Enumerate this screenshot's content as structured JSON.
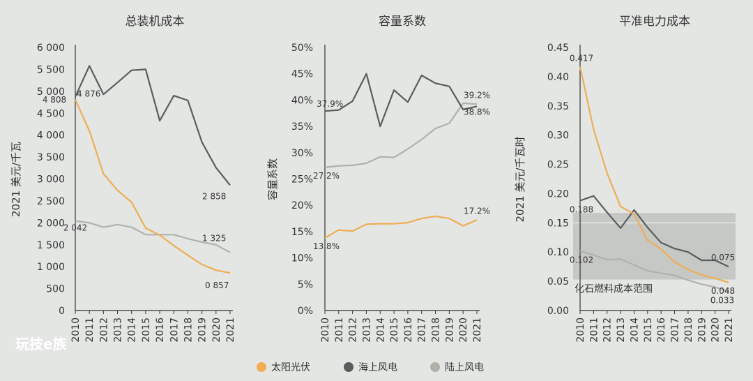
{
  "colors": {
    "solar": "#f0ad55",
    "offshore": "#5b5d5d",
    "onshore": "#b0b2aa",
    "band": "#c6c8c5",
    "axis": "#333333",
    "background": "#e3e6e3"
  },
  "watermark": "玩技e族",
  "legend": [
    {
      "key": "solar",
      "label": "太阳光伏"
    },
    {
      "key": "offshore",
      "label": "海上风电"
    },
    {
      "key": "onshore",
      "label": "陆上风电"
    }
  ],
  "chart_data": [
    {
      "type": "line",
      "title": "总装机成本",
      "xlabel": "",
      "ylabel": "2021 美元/千瓦",
      "x": [
        "2010",
        "2011",
        "2012",
        "2013",
        "2014",
        "2015",
        "2016",
        "2017",
        "2018",
        "2019",
        "2020",
        "2021"
      ],
      "ylim": [
        0,
        6000
      ],
      "yticks": [
        "0",
        "500",
        "1 000",
        "1 500",
        "2 000",
        "2 500",
        "3 000",
        "3 500",
        "4 000",
        "4 500",
        "5 000",
        "5 500",
        "6 000"
      ],
      "series": [
        {
          "name": "太阳光伏",
          "key": "solar",
          "values": [
            4808,
            4100,
            3120,
            2740,
            2470,
            1880,
            1720,
            1480,
            1260,
            1050,
            920,
            857
          ]
        },
        {
          "name": "海上风电",
          "key": "offshore",
          "values": [
            4876,
            5580,
            4930,
            5200,
            5480,
            5500,
            4330,
            4900,
            4790,
            3840,
            3260,
            2858
          ]
        },
        {
          "name": "陆上风电",
          "key": "onshore",
          "values": [
            2042,
            2000,
            1900,
            1960,
            1900,
            1730,
            1730,
            1730,
            1640,
            1560,
            1500,
            1325
          ]
        }
      ],
      "data_labels": [
        {
          "text": "4 808",
          "series": "solar",
          "index": 0
        },
        {
          "text": "4 876",
          "series": "offshore",
          "index": 0
        },
        {
          "text": "2 858",
          "series": "offshore",
          "index": 11
        },
        {
          "text": "2 042",
          "series": "onshore",
          "index": 0
        },
        {
          "text": "1 325",
          "series": "onshore",
          "index": 11
        },
        {
          "text": "0 857",
          "series": "solar",
          "index": 11
        }
      ]
    },
    {
      "type": "line",
      "title": "容量系数",
      "xlabel": "",
      "ylabel": "容量系数",
      "x": [
        "2010",
        "2011",
        "2012",
        "2013",
        "2014",
        "2015",
        "2016",
        "2017",
        "2018",
        "2019",
        "2020",
        "2021"
      ],
      "ylim": [
        0,
        50
      ],
      "yticks": [
        "0%",
        "5%",
        "10%",
        "15%",
        "20%",
        "25%",
        "30%",
        "35%",
        "40%",
        "45%",
        "50%"
      ],
      "series": [
        {
          "name": "太阳光伏",
          "key": "solar",
          "values": [
            13.8,
            15.3,
            15.1,
            16.4,
            16.5,
            16.5,
            16.7,
            17.5,
            17.9,
            17.5,
            16.1,
            17.2
          ]
        },
        {
          "name": "海上风电",
          "key": "offshore",
          "values": [
            37.9,
            38.1,
            39.8,
            45.0,
            35.0,
            41.9,
            39.6,
            44.7,
            43.2,
            42.6,
            38.2,
            38.8
          ]
        },
        {
          "name": "陆上风电",
          "key": "onshore",
          "values": [
            27.2,
            27.5,
            27.6,
            28.0,
            29.2,
            29.1,
            30.7,
            32.5,
            34.6,
            35.6,
            39.4,
            39.2
          ]
        }
      ],
      "data_labels": [
        {
          "text": "37.9%",
          "series": "offshore",
          "index": 0
        },
        {
          "text": "27.2%",
          "series": "onshore",
          "index": 0
        },
        {
          "text": "13.8%",
          "series": "solar",
          "index": 0
        },
        {
          "text": "39.2%",
          "series": "onshore",
          "index": 11
        },
        {
          "text": "38.8%",
          "series": "offshore",
          "index": 11
        },
        {
          "text": "17.2%",
          "series": "solar",
          "index": 11
        }
      ]
    },
    {
      "type": "line",
      "title": "平准电力成本",
      "xlabel": "",
      "ylabel": "2021 美元/千瓦时",
      "x": [
        "2010",
        "2011",
        "2012",
        "2013",
        "2014",
        "2015",
        "2016",
        "2017",
        "2018",
        "2019",
        "2020",
        "2021"
      ],
      "ylim": [
        0,
        0.45
      ],
      "yticks": [
        "0.00",
        "0.05",
        "0.10",
        "0.15",
        "0.20",
        "0.25",
        "0.30",
        "0.35",
        "0.40",
        "0.45"
      ],
      "band": {
        "label": "化石燃料成本范围",
        "low": 0.053,
        "high": 0.167,
        "line": 0.15
      },
      "series": [
        {
          "name": "太阳光伏",
          "key": "solar",
          "values": [
            0.417,
            0.31,
            0.235,
            0.178,
            0.165,
            0.12,
            0.105,
            0.083,
            0.07,
            0.061,
            0.055,
            0.048
          ]
        },
        {
          "name": "海上风电",
          "key": "offshore",
          "values": [
            0.188,
            0.196,
            0.168,
            0.141,
            0.172,
            0.142,
            0.116,
            0.106,
            0.1,
            0.086,
            0.086,
            0.075
          ]
        },
        {
          "name": "陆上风电",
          "key": "onshore",
          "values": [
            0.102,
            0.095,
            0.087,
            0.088,
            0.078,
            0.068,
            0.064,
            0.06,
            0.052,
            0.045,
            0.04,
            0.033
          ]
        }
      ],
      "data_labels": [
        {
          "text": "0.417",
          "series": "solar",
          "index": 0
        },
        {
          "text": "0.188",
          "series": "offshore",
          "index": 0
        },
        {
          "text": "0.102",
          "series": "onshore",
          "index": 0
        },
        {
          "text": "0.075",
          "series": "offshore",
          "index": 11
        },
        {
          "text": "0.048",
          "series": "solar",
          "index": 11
        },
        {
          "text": "0.033",
          "series": "onshore",
          "index": 11
        }
      ]
    }
  ]
}
